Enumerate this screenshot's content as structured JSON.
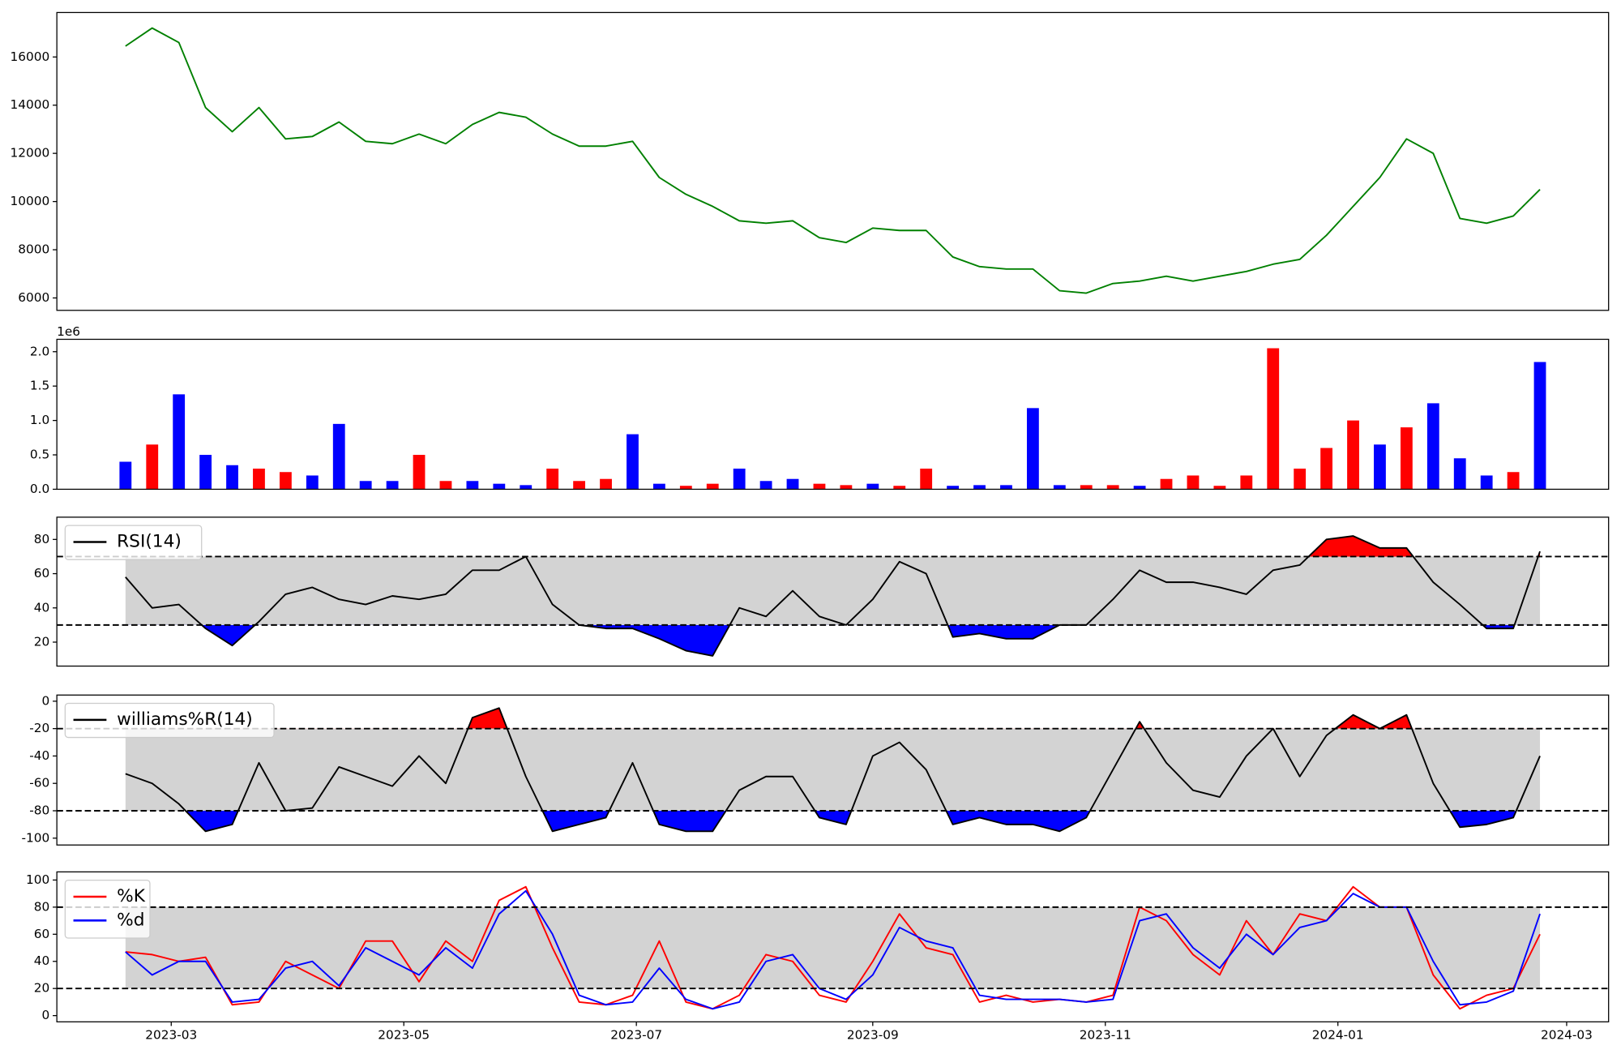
{
  "chart_data": [
    {
      "type": "line",
      "xlim": [
        19387,
        19794
      ],
      "ylim": [
        5485,
        17845
      ],
      "yticks": [
        6000,
        8000,
        10000,
        12000,
        14000,
        16000
      ],
      "x": [
        19405,
        19412,
        19419,
        19426,
        19433,
        19440,
        19447,
        19454,
        19461,
        19468,
        19475,
        19482,
        19489,
        19496,
        19503,
        19510,
        19517,
        19524,
        19531,
        19538,
        19545,
        19552,
        19559,
        19566,
        19573,
        19580,
        19587,
        19594,
        19601,
        19608,
        19615,
        19622,
        19629,
        19636,
        19643,
        19650,
        19657,
        19664,
        19671,
        19678,
        19685,
        19692,
        19699,
        19706,
        19713,
        19720,
        19727,
        19734,
        19741,
        19748,
        19755,
        19762,
        19769,
        19776
      ],
      "series": [
        {
          "color": "#008000",
          "values": [
            16450,
            17200,
            16600,
            13900,
            12900,
            13900,
            12600,
            12700,
            13300,
            12500,
            12400,
            12800,
            12400,
            13200,
            13700,
            13500,
            12800,
            12300,
            12300,
            12500,
            11000,
            10300,
            9800,
            9200,
            9100,
            9200,
            8500,
            8300,
            8900,
            8800,
            8800,
            7700,
            7300,
            7200,
            7200,
            6300,
            6200,
            6600,
            6700,
            6900,
            6700,
            6900,
            7100,
            7400,
            7600,
            8600,
            9800,
            11000,
            12600,
            12000,
            9300,
            9100,
            9400,
            10500
          ]
        }
      ]
    },
    {
      "type": "bar",
      "xlim": [
        19387,
        19794
      ],
      "ylim": [
        0,
        2.18
      ],
      "offset_text": "1e6",
      "yticks": [
        {
          "value": 0,
          "label": "0.0"
        },
        {
          "value": 0.5,
          "label": "0.5"
        },
        {
          "value": 1,
          "label": "1.0"
        },
        {
          "value": 1.5,
          "label": "1.5"
        },
        {
          "value": 2,
          "label": "2.0"
        }
      ],
      "x": [
        19405,
        19412,
        19419,
        19426,
        19433,
        19440,
        19447,
        19454,
        19461,
        19468,
        19475,
        19482,
        19489,
        19496,
        19503,
        19510,
        19517,
        19524,
        19531,
        19538,
        19545,
        19552,
        19559,
        19566,
        19573,
        19580,
        19587,
        19594,
        19601,
        19608,
        19615,
        19622,
        19629,
        19636,
        19643,
        19650,
        19657,
        19664,
        19671,
        19678,
        19685,
        19692,
        19699,
        19706,
        19713,
        19720,
        19727,
        19734,
        19741,
        19748,
        19755,
        19762,
        19769,
        19776
      ],
      "values": [
        0.4,
        0.65,
        1.38,
        0.5,
        0.35,
        0.3,
        0.25,
        0.2,
        0.95,
        0.12,
        0.12,
        0.5,
        0.12,
        0.12,
        0.08,
        0.06,
        0.3,
        0.12,
        0.15,
        0.8,
        0.08,
        0.05,
        0.08,
        0.3,
        0.12,
        0.15,
        0.08,
        0.06,
        0.08,
        0.05,
        0.3,
        0.05,
        0.06,
        0.06,
        1.18,
        0.06,
        0.06,
        0.06,
        0.05,
        0.15,
        0.2,
        0.05,
        0.2,
        2.05,
        0.3,
        0.6,
        1.0,
        0.65,
        0.9,
        1.25,
        0.45,
        0.2,
        0.25,
        1.85
      ],
      "colors": [
        "blue",
        "red",
        "blue",
        "blue",
        "blue",
        "red",
        "red",
        "blue",
        "blue",
        "blue",
        "blue",
        "red",
        "red",
        "blue",
        "blue",
        "blue",
        "red",
        "red",
        "red",
        "blue",
        "blue",
        "red",
        "red",
        "blue",
        "blue",
        "blue",
        "red",
        "red",
        "blue",
        "red",
        "red",
        "blue",
        "blue",
        "blue",
        "blue",
        "blue",
        "red",
        "red",
        "blue",
        "red",
        "red",
        "red",
        "red",
        "red",
        "red",
        "red",
        "red",
        "blue",
        "red",
        "blue",
        "blue",
        "blue",
        "red",
        "blue"
      ]
    },
    {
      "type": "line",
      "xlim": [
        19387,
        19794
      ],
      "ylim": [
        6,
        93
      ],
      "yticks": [
        20,
        40,
        60,
        80
      ],
      "hlines": [
        70,
        30
      ],
      "band_color": "#d3d3d3",
      "above_color": "red",
      "below_color": "blue",
      "legend": "upper left",
      "x": [
        19405,
        19412,
        19419,
        19426,
        19433,
        19440,
        19447,
        19454,
        19461,
        19468,
        19475,
        19482,
        19489,
        19496,
        19503,
        19510,
        19517,
        19524,
        19531,
        19538,
        19545,
        19552,
        19559,
        19566,
        19573,
        19580,
        19587,
        19594,
        19601,
        19608,
        19615,
        19622,
        19629,
        19636,
        19643,
        19650,
        19657,
        19664,
        19671,
        19678,
        19685,
        19692,
        19699,
        19706,
        19713,
        19720,
        19727,
        19734,
        19741,
        19748,
        19755,
        19762,
        19769,
        19776
      ],
      "series": [
        {
          "name": "RSI(14)",
          "color": "#000000",
          "values": [
            58,
            40,
            42,
            28,
            18,
            32,
            48,
            52,
            45,
            42,
            47,
            45,
            48,
            62,
            62,
            70,
            42,
            30,
            28,
            28,
            22,
            15,
            12,
            40,
            35,
            50,
            35,
            30,
            45,
            67,
            60,
            23,
            25,
            22,
            22,
            30,
            30,
            45,
            62,
            55,
            55,
            52,
            48,
            62,
            65,
            80,
            82,
            75,
            75,
            55,
            42,
            28,
            28,
            73
          ]
        }
      ]
    },
    {
      "type": "line",
      "xlim": [
        19387,
        19794
      ],
      "ylim": [
        -105,
        4.5
      ],
      "yticks": [
        -100,
        -80,
        -60,
        -40,
        -20,
        0
      ],
      "hlines": [
        -20,
        -80
      ],
      "band_color": "#d3d3d3",
      "above_color": "red",
      "below_color": "blue",
      "legend": "upper left",
      "x": [
        19405,
        19412,
        19419,
        19426,
        19433,
        19440,
        19447,
        19454,
        19461,
        19468,
        19475,
        19482,
        19489,
        19496,
        19503,
        19510,
        19517,
        19524,
        19531,
        19538,
        19545,
        19552,
        19559,
        19566,
        19573,
        19580,
        19587,
        19594,
        19601,
        19608,
        19615,
        19622,
        19629,
        19636,
        19643,
        19650,
        19657,
        19664,
        19671,
        19678,
        19685,
        19692,
        19699,
        19706,
        19713,
        19720,
        19727,
        19734,
        19741,
        19748,
        19755,
        19762,
        19769,
        19776
      ],
      "series": [
        {
          "name": "williams%R(14)",
          "color": "#000000",
          "values": [
            -53,
            -60,
            -75,
            -95,
            -90,
            -45,
            -80,
            -78,
            -48,
            -55,
            -62,
            -40,
            -60,
            -12,
            -5,
            -55,
            -95,
            -90,
            -85,
            -45,
            -90,
            -95,
            -95,
            -65,
            -55,
            -55,
            -85,
            -90,
            -40,
            -30,
            -50,
            -90,
            -85,
            -90,
            -90,
            -95,
            -85,
            -50,
            -15,
            -45,
            -65,
            -70,
            -40,
            -20,
            -55,
            -25,
            -10,
            -20,
            -10,
            -60,
            -92,
            -90,
            -85,
            -40
          ]
        }
      ]
    },
    {
      "type": "line",
      "xlim": [
        19387,
        19794
      ],
      "ylim": [
        -4.6,
        106
      ],
      "yticks": [
        0,
        20,
        40,
        60,
        80,
        100
      ],
      "hlines": [
        80,
        20
      ],
      "band_color": "#d3d3d3",
      "legend": "upper left",
      "xticks": [
        {
          "value": 19417,
          "label": "2023-03"
        },
        {
          "value": 19478,
          "label": "2023-05"
        },
        {
          "value": 19539,
          "label": "2023-07"
        },
        {
          "value": 19601,
          "label": "2023-09"
        },
        {
          "value": 19662,
          "label": "2023-11"
        },
        {
          "value": 19723,
          "label": "2024-01"
        },
        {
          "value": 19783,
          "label": "2024-03"
        }
      ],
      "x": [
        19405,
        19412,
        19419,
        19426,
        19433,
        19440,
        19447,
        19454,
        19461,
        19468,
        19475,
        19482,
        19489,
        19496,
        19503,
        19510,
        19517,
        19524,
        19531,
        19538,
        19545,
        19552,
        19559,
        19566,
        19573,
        19580,
        19587,
        19594,
        19601,
        19608,
        19615,
        19622,
        19629,
        19636,
        19643,
        19650,
        19657,
        19664,
        19671,
        19678,
        19685,
        19692,
        19699,
        19706,
        19713,
        19720,
        19727,
        19734,
        19741,
        19748,
        19755,
        19762,
        19769,
        19776
      ],
      "series": [
        {
          "name": "%K",
          "color": "#ff0000",
          "values": [
            47,
            45,
            40,
            43,
            8,
            10,
            40,
            30,
            20,
            55,
            55,
            25,
            55,
            40,
            85,
            95,
            50,
            10,
            8,
            15,
            55,
            10,
            5,
            15,
            45,
            40,
            15,
            10,
            40,
            75,
            50,
            45,
            10,
            15,
            10,
            12,
            10,
            15,
            80,
            70,
            45,
            30,
            70,
            45,
            75,
            70,
            95,
            80,
            80,
            30,
            5,
            15,
            20,
            60
          ]
        },
        {
          "name": "%d",
          "color": "#0000ff",
          "values": [
            47,
            30,
            40,
            40,
            10,
            12,
            35,
            40,
            22,
            50,
            40,
            30,
            50,
            35,
            75,
            92,
            60,
            15,
            8,
            10,
            35,
            12,
            5,
            10,
            40,
            45,
            20,
            12,
            30,
            65,
            55,
            50,
            15,
            12,
            12,
            12,
            10,
            12,
            70,
            75,
            50,
            35,
            60,
            45,
            65,
            70,
            90,
            80,
            80,
            40,
            8,
            10,
            18,
            75
          ]
        }
      ]
    }
  ]
}
